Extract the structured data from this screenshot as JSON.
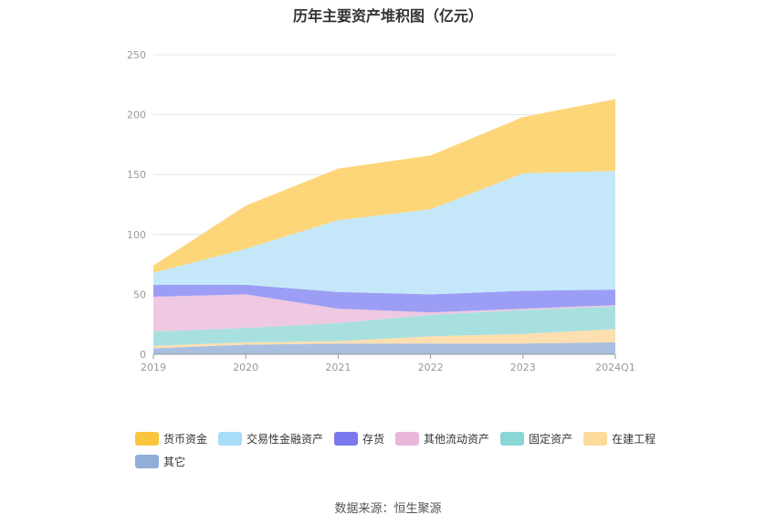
{
  "chart_data": {
    "type": "area",
    "stacked": true,
    "title": "历年主要资产堆积图（亿元）",
    "categories": [
      "2019",
      "2020",
      "2021",
      "2022",
      "2023",
      "2024Q1"
    ],
    "ylim": [
      0,
      250
    ],
    "yticks": [
      0,
      50,
      100,
      150,
      200,
      250
    ],
    "grid": true,
    "legend_position": "bottom",
    "series": [
      {
        "name": "其它",
        "color": "#a9bfe0",
        "legend_color": "#8fafd9",
        "values": [
          5,
          8,
          9,
          9,
          9,
          10
        ]
      },
      {
        "name": "在建工程",
        "color": "#fddfb0",
        "legend_color": "#fddb9a",
        "values": [
          2,
          2,
          2,
          6,
          8,
          11
        ]
      },
      {
        "name": "固定资产",
        "color": "#a8e0df",
        "legend_color": "#8ad6d5",
        "values": [
          12,
          12,
          15,
          18,
          20,
          19
        ]
      },
      {
        "name": "其他流动资产",
        "color": "#efc8e2",
        "legend_color": "#e8b7d9",
        "values": [
          29,
          28,
          12,
          2,
          1,
          1
        ]
      },
      {
        "name": "存货",
        "color": "#9c9ef5",
        "legend_color": "#7b78f0",
        "values": [
          10,
          8,
          14,
          15,
          15,
          13
        ]
      },
      {
        "name": "交易性金融资产",
        "color": "#c4e8fa",
        "legend_color": "#a8dcf9",
        "values": [
          10,
          30,
          60,
          71,
          98,
          99
        ]
      },
      {
        "name": "货币资金",
        "color": "#fdd67a",
        "legend_color": "#fbc43e",
        "values": [
          6,
          36,
          43,
          45,
          47,
          60
        ]
      }
    ]
  },
  "source": "数据来源：恒生聚源"
}
